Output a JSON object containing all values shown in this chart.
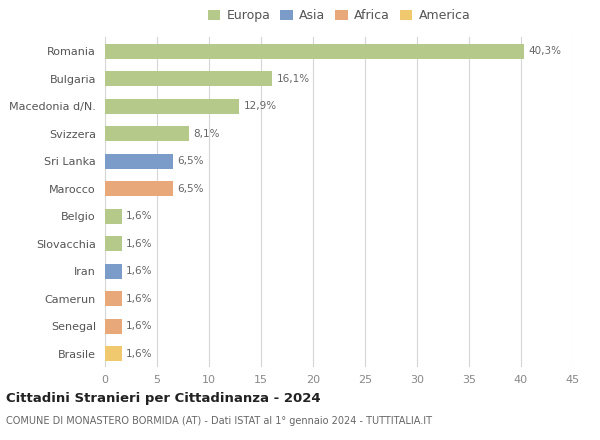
{
  "countries": [
    "Romania",
    "Bulgaria",
    "Macedonia d/N.",
    "Svizzera",
    "Sri Lanka",
    "Marocco",
    "Belgio",
    "Slovacchia",
    "Iran",
    "Camerun",
    "Senegal",
    "Brasile"
  ],
  "values": [
    40.3,
    16.1,
    12.9,
    8.1,
    6.5,
    6.5,
    1.6,
    1.6,
    1.6,
    1.6,
    1.6,
    1.6
  ],
  "labels": [
    "40,3%",
    "16,1%",
    "12,9%",
    "8,1%",
    "6,5%",
    "6,5%",
    "1,6%",
    "1,6%",
    "1,6%",
    "1,6%",
    "1,6%",
    "1,6%"
  ],
  "colors": [
    "#b5c98a",
    "#b5c98a",
    "#b5c98a",
    "#b5c98a",
    "#7b9cc8",
    "#e8a87a",
    "#b5c98a",
    "#b5c98a",
    "#7b9cc8",
    "#e8a87a",
    "#e8a87a",
    "#f0c96e"
  ],
  "legend_labels": [
    "Europa",
    "Asia",
    "Africa",
    "America"
  ],
  "legend_colors": [
    "#b5c98a",
    "#7b9cc8",
    "#e8a87a",
    "#f0c96e"
  ],
  "xlim": [
    0,
    45
  ],
  "xticks": [
    0,
    5,
    10,
    15,
    20,
    25,
    30,
    35,
    40,
    45
  ],
  "title": "Cittadini Stranieri per Cittadinanza - 2024",
  "subtitle": "COMUNE DI MONASTERO BORMIDA (AT) - Dati ISTAT al 1° gennaio 2024 - TUTTITALIA.IT",
  "bg_color": "#ffffff",
  "grid_color": "#d5d5d5",
  "bar_height": 0.55
}
